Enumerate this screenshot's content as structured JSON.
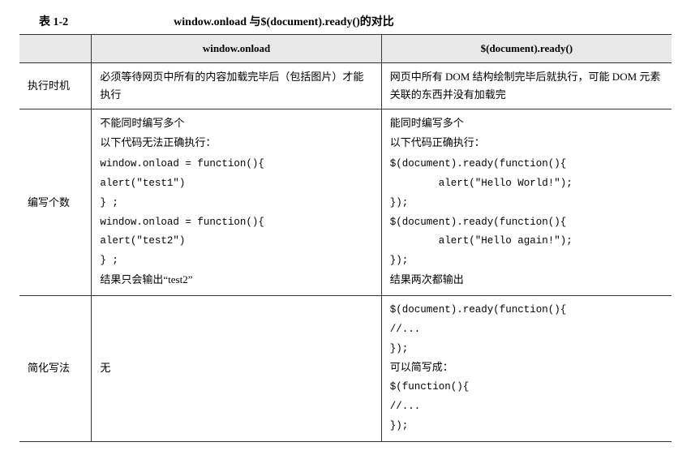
{
  "table_label": "表 1-2",
  "table_title": "window.onload 与$(document).ready()的对比",
  "headers": {
    "col_blank": "",
    "col_onload": "window.onload",
    "col_ready": "$(document).ready()"
  },
  "rows": {
    "timing": {
      "label": "执行时机",
      "onload": "必须等待网页中所有的内容加载完毕后（包括图片）才能执行",
      "ready": "网页中所有 DOM 结构绘制完毕后就执行，可能 DOM 元素关联的东西并没有加载完"
    },
    "count": {
      "label": "编写个数",
      "onload_intro1": "不能同时编写多个",
      "onload_intro2": "以下代码无法正确执行：",
      "onload_code": "window.onload = function(){\nalert(\"test1\")\n} ;\nwindow.onload = function(){\nalert(\"test2\")\n} ;",
      "onload_result": "结果只会输出“test2”",
      "ready_intro1": "能同时编写多个",
      "ready_intro2": "以下代码正确执行：",
      "ready_code": "$(document).ready(function(){\n        alert(\"Hello World!\");\n});\n$(document).ready(function(){\n        alert(\"Hello again!\");\n});",
      "ready_result": "结果两次都输出"
    },
    "shorthand": {
      "label": "简化写法",
      "onload": "无",
      "ready_code1": "$(document).ready(function(){\n//...\n});",
      "ready_mid": "可以简写成：",
      "ready_code2": "$(function(){\n//...\n});"
    }
  }
}
